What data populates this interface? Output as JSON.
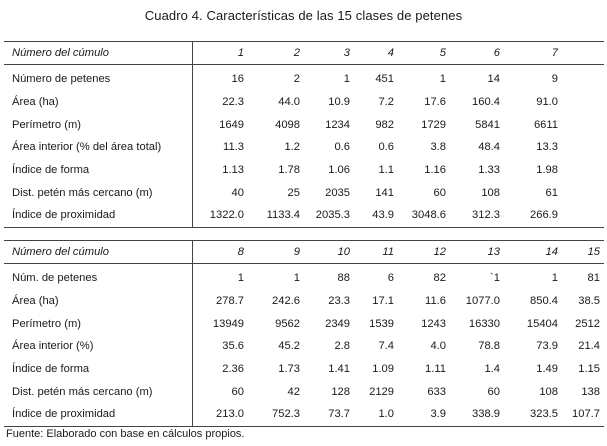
{
  "title": "Cuadro 4. Características de las 15 clases de petenes",
  "table1": {
    "header_label": "Número del cúmulo",
    "columns": [
      "1",
      "2",
      "3",
      "4",
      "5",
      "6",
      "7"
    ],
    "rows": [
      {
        "label": "Número de petenes",
        "values": [
          "16",
          "2",
          "1",
          "451",
          "1",
          "14",
          "9"
        ]
      },
      {
        "label": "Área (ha)",
        "values": [
          "22.3",
          "44.0",
          "10.9",
          "7.2",
          "17.6",
          "160.4",
          "91.0"
        ]
      },
      {
        "label": "Perímetro (m)",
        "values": [
          "1649",
          "4098",
          "1234",
          "982",
          "1729",
          "5841",
          "6611"
        ]
      },
      {
        "label": "Área interior (% del área total)",
        "values": [
          "11.3",
          "1.2",
          "0.6",
          "0.6",
          "3.8",
          "48.4",
          "13.3"
        ]
      },
      {
        "label": "Índice de forma",
        "values": [
          "1.13",
          "1.78",
          "1.06",
          "1.1",
          "1.16",
          "1.33",
          "1.98"
        ]
      },
      {
        "label": "Dist. petén más cercano (m)",
        "values": [
          "40",
          "25",
          "2035",
          "141",
          "60",
          "108",
          "61"
        ]
      },
      {
        "label": "Índice de proximidad",
        "values": [
          "1322.0",
          "1133.4",
          "2035.3",
          "43.9",
          "3048.6",
          "312.3",
          "266.9"
        ]
      }
    ]
  },
  "table2": {
    "header_label": "Número del cúmulo",
    "columns": [
      "8",
      "9",
      "10",
      "11",
      "12",
      "13",
      "14",
      "15"
    ],
    "rows": [
      {
        "label": "Núm. de petenes",
        "values": [
          "1",
          "1",
          "88",
          "6",
          "82",
          "`1",
          "1",
          "81"
        ]
      },
      {
        "label": "Área (ha)",
        "values": [
          "278.7",
          "242.6",
          "23.3",
          "17.1",
          "11.6",
          "1077.0",
          "850.4",
          "38.5"
        ]
      },
      {
        "label": "Perímetro (m)",
        "values": [
          "13949",
          "9562",
          "2349",
          "1539",
          "1243",
          "16330",
          "15404",
          "2512"
        ]
      },
      {
        "label": "Área interior (%)",
        "values": [
          "35.6",
          "45.2",
          "2.8",
          "7.4",
          "4.0",
          "78.8",
          "73.9",
          "21.4"
        ]
      },
      {
        "label": "Índice de forma",
        "values": [
          "2.36",
          "1.73",
          "1.41",
          "1.09",
          "1.11",
          "1.4",
          "1.49",
          "1.15"
        ]
      },
      {
        "label": "Dist. petén más cercano (m)",
        "values": [
          "60",
          "42",
          "128",
          "2129",
          "633",
          "60",
          "108",
          "138"
        ]
      },
      {
        "label": "Índice de proximidad",
        "values": [
          "213.0",
          "752.3",
          "73.7",
          "1.0",
          "3.9",
          "338.9",
          "323.5",
          "107.7"
        ]
      }
    ]
  },
  "source": "Fuente: Elaborado con base en cálculos propios."
}
